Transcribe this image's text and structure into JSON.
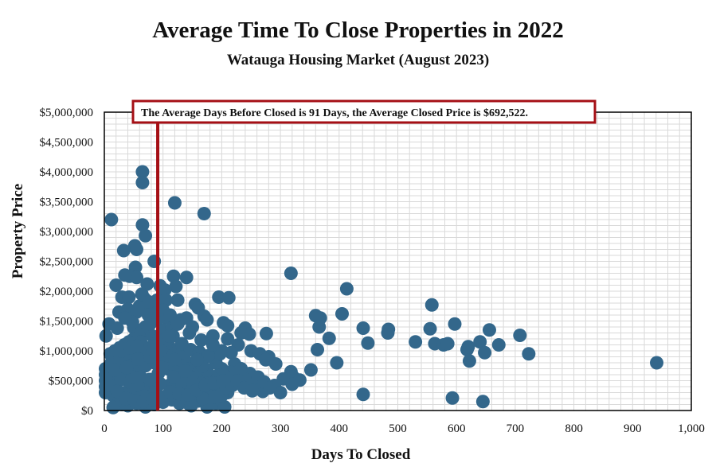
{
  "chart_data": {
    "type": "scatter",
    "title": "Average Time To Close Properties in 2022",
    "subtitle": "Watauga Housing Market (August 2023)",
    "xlabel": "Days To Closed",
    "ylabel": "Property Price",
    "xlim": [
      0,
      1000
    ],
    "ylim": [
      0,
      5000000
    ],
    "x_ticks": [
      0,
      100,
      200,
      300,
      400,
      500,
      600,
      700,
      800,
      900,
      1000
    ],
    "x_tick_labels": [
      "0",
      "100",
      "200",
      "300",
      "400",
      "500",
      "600",
      "700",
      "800",
      "900",
      "1,000"
    ],
    "y_ticks": [
      0,
      500000,
      1000000,
      1500000,
      2000000,
      2500000,
      3000000,
      3500000,
      4000000,
      4500000,
      5000000
    ],
    "y_tick_labels": [
      "$0",
      "$500,000",
      "$1,000,000",
      "$1,500,000",
      "$2,000,000",
      "$2,500,000",
      "$3,000,000",
      "$3,500,000",
      "$4,000,000",
      "$4,500,000",
      "$5,000,000"
    ],
    "grid": true,
    "average_line": {
      "x": 91,
      "color": "#a50f15"
    },
    "annotation": "The Average Days Before Closed is 91 Days, the Average Closed Price is $692,522.",
    "marker_color": "#33678b",
    "points": [
      [
        65,
        4000000
      ],
      [
        65,
        3820000
      ],
      [
        120,
        3480000
      ],
      [
        170,
        3300000
      ],
      [
        12,
        3200000
      ],
      [
        65,
        3110000
      ],
      [
        70,
        2930000
      ],
      [
        52,
        2760000
      ],
      [
        55,
        2700000
      ],
      [
        33,
        2680000
      ],
      [
        85,
        2500000
      ],
      [
        53,
        2400000
      ],
      [
        43,
        2250000
      ],
      [
        55,
        2230000
      ],
      [
        35,
        2270000
      ],
      [
        118,
        2250000
      ],
      [
        140,
        2230000
      ],
      [
        73,
        2120000
      ],
      [
        95,
        2090000
      ],
      [
        20,
        2100000
      ],
      [
        122,
        2080000
      ],
      [
        103,
        2020000
      ],
      [
        318,
        2300000
      ],
      [
        413,
        2040000
      ],
      [
        30,
        1900000
      ],
      [
        42,
        1900000
      ],
      [
        68,
        1880000
      ],
      [
        90,
        1850000
      ],
      [
        105,
        1850000
      ],
      [
        125,
        1850000
      ],
      [
        155,
        1780000
      ],
      [
        160,
        1720000
      ],
      [
        195,
        1900000
      ],
      [
        212,
        1890000
      ],
      [
        60,
        1750000
      ],
      [
        80,
        1730000
      ],
      [
        40,
        1700000
      ],
      [
        25,
        1650000
      ],
      [
        55,
        1650000
      ],
      [
        75,
        1600000
      ],
      [
        105,
        1560000
      ],
      [
        130,
        1520000
      ],
      [
        140,
        1550000
      ],
      [
        170,
        1580000
      ],
      [
        175,
        1520000
      ],
      [
        203,
        1470000
      ],
      [
        210,
        1420000
      ],
      [
        240,
        1380000
      ],
      [
        247,
        1280000
      ],
      [
        233,
        1300000
      ],
      [
        276,
        1290000
      ],
      [
        8,
        1450000
      ],
      [
        3,
        1250000
      ],
      [
        22,
        1380000
      ],
      [
        50,
        1390000
      ],
      [
        70,
        1400000
      ],
      [
        100,
        1350000
      ],
      [
        115,
        1380000
      ],
      [
        150,
        1400000
      ],
      [
        185,
        1250000
      ],
      [
        210,
        1200000
      ],
      [
        228,
        1100000
      ],
      [
        200,
        1000000
      ],
      [
        216,
        970000
      ],
      [
        250,
        1000000
      ],
      [
        265,
        950000
      ],
      [
        280,
        900000
      ],
      [
        275,
        850000
      ],
      [
        292,
        780000
      ],
      [
        360,
        1590000
      ],
      [
        366,
        1400000
      ],
      [
        368,
        1550000
      ],
      [
        383,
        1210000
      ],
      [
        363,
        1020000
      ],
      [
        396,
        800000
      ],
      [
        405,
        1620000
      ],
      [
        441,
        1380000
      ],
      [
        449,
        1130000
      ],
      [
        483,
        1300000
      ],
      [
        484,
        1360000
      ],
      [
        530,
        1150000
      ],
      [
        555,
        1370000
      ],
      [
        558,
        1770000
      ],
      [
        563,
        1120000
      ],
      [
        578,
        1100000
      ],
      [
        585,
        1120000
      ],
      [
        597,
        1450000
      ],
      [
        618,
        1020000
      ],
      [
        620,
        1070000
      ],
      [
        622,
        830000
      ],
      [
        640,
        1150000
      ],
      [
        648,
        970000
      ],
      [
        656,
        1350000
      ],
      [
        672,
        1100000
      ],
      [
        708,
        1260000
      ],
      [
        723,
        950000
      ],
      [
        941,
        800000
      ],
      [
        441,
        270000
      ],
      [
        593,
        210000
      ],
      [
        645,
        150000
      ],
      [
        352,
        680000
      ],
      [
        318,
        650000
      ],
      [
        322,
        560000
      ],
      [
        333,
        510000
      ],
      [
        305,
        530000
      ],
      [
        320,
        440000
      ],
      [
        290,
        420000
      ],
      [
        300,
        300000
      ],
      [
        270,
        320000
      ],
      [
        260,
        400000
      ],
      [
        255,
        450000
      ],
      [
        248,
        620000
      ],
      [
        240,
        520000
      ],
      [
        230,
        460000
      ],
      [
        222,
        780000
      ],
      [
        233,
        700000
      ],
      [
        215,
        640000
      ],
      [
        208,
        560000
      ],
      [
        200,
        700000
      ],
      [
        195,
        600000
      ],
      [
        188,
        520000
      ],
      [
        180,
        580000
      ],
      [
        172,
        500000
      ],
      [
        165,
        560000
      ],
      [
        158,
        650000
      ],
      [
        150,
        720000
      ],
      [
        142,
        800000
      ],
      [
        135,
        900000
      ],
      [
        128,
        950000
      ],
      [
        120,
        1000000
      ],
      [
        112,
        1050000
      ],
      [
        105,
        1100000
      ],
      [
        98,
        1150000
      ],
      [
        90,
        1200000
      ],
      [
        82,
        1250000
      ],
      [
        74,
        1300000
      ],
      [
        66,
        1350000
      ],
      [
        58,
        1280000
      ],
      [
        50,
        1200000
      ],
      [
        42,
        1150000
      ],
      [
        34,
        1100000
      ],
      [
        26,
        1050000
      ],
      [
        18,
        1000000
      ],
      [
        10,
        950000
      ],
      [
        2,
        700000
      ],
      [
        2,
        600000
      ],
      [
        2,
        500000
      ],
      [
        2,
        400000
      ],
      [
        2,
        300000
      ],
      [
        10,
        350000
      ],
      [
        15,
        250000
      ],
      [
        20,
        200000
      ],
      [
        25,
        150000
      ],
      [
        30,
        100000
      ],
      [
        15,
        50000
      ],
      [
        40,
        80000
      ],
      [
        55,
        120000
      ],
      [
        70,
        60000
      ],
      [
        85,
        100000
      ],
      [
        100,
        140000
      ],
      [
        115,
        180000
      ],
      [
        130,
        220000
      ],
      [
        145,
        100000
      ],
      [
        160,
        160000
      ],
      [
        175,
        60000
      ],
      [
        190,
        120000
      ],
      [
        205,
        60000
      ],
      [
        210,
        300000
      ],
      [
        200,
        250000
      ],
      [
        185,
        300000
      ],
      [
        170,
        350000
      ],
      [
        155,
        280000
      ],
      [
        140,
        330000
      ],
      [
        125,
        380000
      ],
      [
        110,
        420000
      ],
      [
        95,
        450000
      ],
      [
        80,
        400000
      ],
      [
        65,
        380000
      ],
      [
        50,
        350000
      ],
      [
        35,
        300000
      ],
      [
        20,
        450000
      ],
      [
        10,
        550000
      ],
      [
        25,
        600000
      ],
      [
        40,
        650000
      ],
      [
        55,
        700000
      ],
      [
        70,
        750000
      ],
      [
        85,
        800000
      ],
      [
        100,
        850000
      ],
      [
        115,
        880000
      ],
      [
        130,
        750000
      ],
      [
        145,
        700000
      ],
      [
        160,
        620000
      ],
      [
        175,
        680000
      ],
      [
        190,
        800000
      ],
      [
        45,
        950000
      ],
      [
        60,
        1000000
      ],
      [
        75,
        1050000
      ],
      [
        90,
        950000
      ],
      [
        105,
        920000
      ],
      [
        120,
        850000
      ],
      [
        135,
        600000
      ],
      [
        150,
        550000
      ],
      [
        165,
        450000
      ],
      [
        180,
        400000
      ],
      [
        195,
        350000
      ],
      [
        32,
        820000
      ],
      [
        47,
        760000
      ],
      [
        62,
        560000
      ],
      [
        77,
        520000
      ],
      [
        92,
        620000
      ],
      [
        107,
        700000
      ],
      [
        122,
        640000
      ],
      [
        137,
        480000
      ],
      [
        152,
        420000
      ],
      [
        167,
        750000
      ],
      [
        182,
        900000
      ],
      [
        197,
        950000
      ],
      [
        12,
        800000
      ],
      [
        27,
        880000
      ],
      [
        42,
        480000
      ],
      [
        57,
        420000
      ],
      [
        72,
        980000
      ],
      [
        87,
        1080000
      ],
      [
        102,
        1180000
      ],
      [
        117,
        1250000
      ],
      [
        132,
        1120000
      ],
      [
        147,
        1020000
      ],
      [
        162,
        980000
      ],
      [
        177,
        920000
      ],
      [
        28,
        520000
      ],
      [
        48,
        560000
      ],
      [
        68,
        240000
      ],
      [
        88,
        300000
      ],
      [
        108,
        260000
      ],
      [
        128,
        120000
      ],
      [
        148,
        80000
      ],
      [
        168,
        200000
      ],
      [
        188,
        230000
      ],
      [
        208,
        380000
      ],
      [
        18,
        680000
      ],
      [
        38,
        720000
      ],
      [
        58,
        860000
      ],
      [
        78,
        900000
      ],
      [
        98,
        720000
      ],
      [
        118,
        560000
      ],
      [
        138,
        660000
      ],
      [
        158,
        850000
      ],
      [
        8,
        420000
      ],
      [
        22,
        320000
      ],
      [
        37,
        200000
      ],
      [
        52,
        160000
      ],
      [
        67,
        150000
      ],
      [
        82,
        190000
      ],
      [
        97,
        230000
      ],
      [
        112,
        310000
      ],
      [
        127,
        280000
      ],
      [
        142,
        260000
      ],
      [
        157,
        340000
      ],
      [
        172,
        420000
      ],
      [
        187,
        460000
      ],
      [
        202,
        500000
      ],
      [
        218,
        420000
      ],
      [
        226,
        500000
      ],
      [
        238,
        380000
      ],
      [
        252,
        330000
      ],
      [
        262,
        560000
      ],
      [
        272,
        480000
      ],
      [
        282,
        380000
      ],
      [
        62,
        1150000
      ],
      [
        78,
        1450000
      ],
      [
        92,
        1550000
      ],
      [
        48,
        1480000
      ],
      [
        35,
        1550000
      ],
      [
        110,
        1250000
      ],
      [
        125,
        1450000
      ],
      [
        145,
        1300000
      ],
      [
        165,
        1180000
      ],
      [
        185,
        1100000
      ],
      [
        30,
        1000000
      ],
      [
        44,
        1050000
      ],
      [
        56,
        1080000
      ],
      [
        83,
        1020000
      ],
      [
        96,
        1000000
      ],
      [
        88,
        1750000
      ],
      [
        100,
        1680000
      ],
      [
        112,
        1600000
      ],
      [
        64,
        1950000
      ],
      [
        76,
        1820000
      ]
    ]
  }
}
